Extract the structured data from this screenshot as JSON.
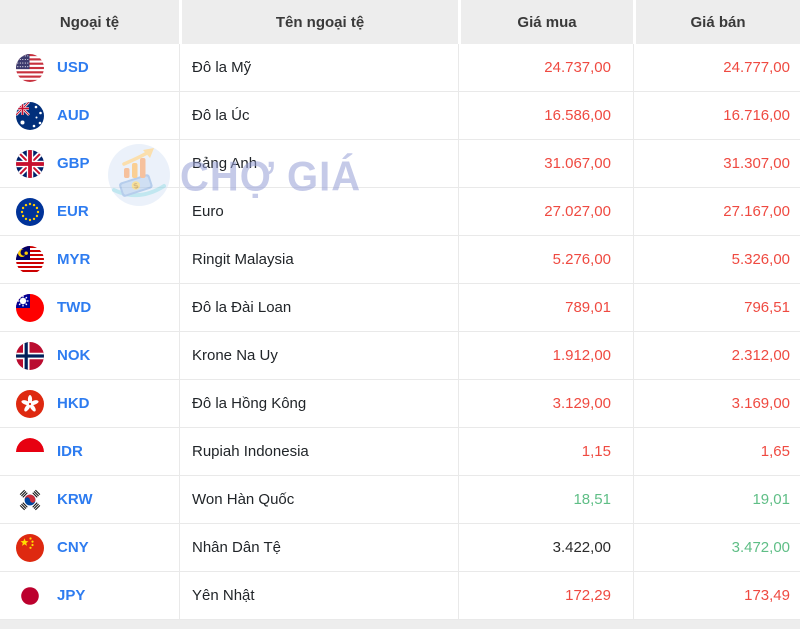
{
  "table": {
    "columns": [
      {
        "key": "code",
        "label": "Ngoại tệ"
      },
      {
        "key": "name",
        "label": "Tên ngoại tệ"
      },
      {
        "key": "buy",
        "label": "Giá mua"
      },
      {
        "key": "sell",
        "label": "Giá bán"
      }
    ],
    "rows": [
      {
        "code": "USD",
        "flag": "us",
        "name": "Đô la Mỹ",
        "buy": "24.737,00",
        "buy_color": "red",
        "sell": "24.777,00",
        "sell_color": "red"
      },
      {
        "code": "AUD",
        "flag": "au",
        "name": "Đô la Úc",
        "buy": "16.586,00",
        "buy_color": "red",
        "sell": "16.716,00",
        "sell_color": "red"
      },
      {
        "code": "GBP",
        "flag": "gb",
        "name": "Bảng Anh",
        "buy": "31.067,00",
        "buy_color": "red",
        "sell": "31.307,00",
        "sell_color": "red"
      },
      {
        "code": "EUR",
        "flag": "eu",
        "name": "Euro",
        "buy": "27.027,00",
        "buy_color": "red",
        "sell": "27.167,00",
        "sell_color": "red"
      },
      {
        "code": "MYR",
        "flag": "my",
        "name": "Ringit Malaysia",
        "buy": "5.276,00",
        "buy_color": "red",
        "sell": "5.326,00",
        "sell_color": "red"
      },
      {
        "code": "TWD",
        "flag": "tw",
        "name": "Đô la Đài Loan",
        "buy": "789,01",
        "buy_color": "red",
        "sell": "796,51",
        "sell_color": "red"
      },
      {
        "code": "NOK",
        "flag": "no",
        "name": "Krone Na Uy",
        "buy": "1.912,00",
        "buy_color": "red",
        "sell": "2.312,00",
        "sell_color": "red"
      },
      {
        "code": "HKD",
        "flag": "hk",
        "name": "Đô la Hồng Kông",
        "buy": "3.129,00",
        "buy_color": "red",
        "sell": "3.169,00",
        "sell_color": "red"
      },
      {
        "code": "IDR",
        "flag": "id",
        "name": "Rupiah Indonesia",
        "buy": "1,15",
        "buy_color": "red",
        "sell": "1,65",
        "sell_color": "red"
      },
      {
        "code": "KRW",
        "flag": "kr",
        "name": "Won Hàn Quốc",
        "buy": "18,51",
        "buy_color": "green",
        "sell": "19,01",
        "sell_color": "green"
      },
      {
        "code": "CNY",
        "flag": "cn",
        "name": "Nhân Dân Tệ",
        "buy": "3.422,00",
        "buy_color": "dark",
        "sell": "3.472,00",
        "sell_color": "green"
      },
      {
        "code": "JPY",
        "flag": "jp",
        "name": "Yên Nhật",
        "buy": "172,29",
        "buy_color": "red",
        "sell": "173,49",
        "sell_color": "red"
      }
    ]
  },
  "watermark": {
    "text": "CHỢ GIÁ"
  },
  "colors": {
    "red": "#ef4a41",
    "green": "#5fbe86",
    "dark": "#2b2b2b",
    "code_blue": "#2e7cf0",
    "header_bg": "#ededed",
    "row_border": "#e9e9e9",
    "watermark_text": "#97a0d6"
  }
}
